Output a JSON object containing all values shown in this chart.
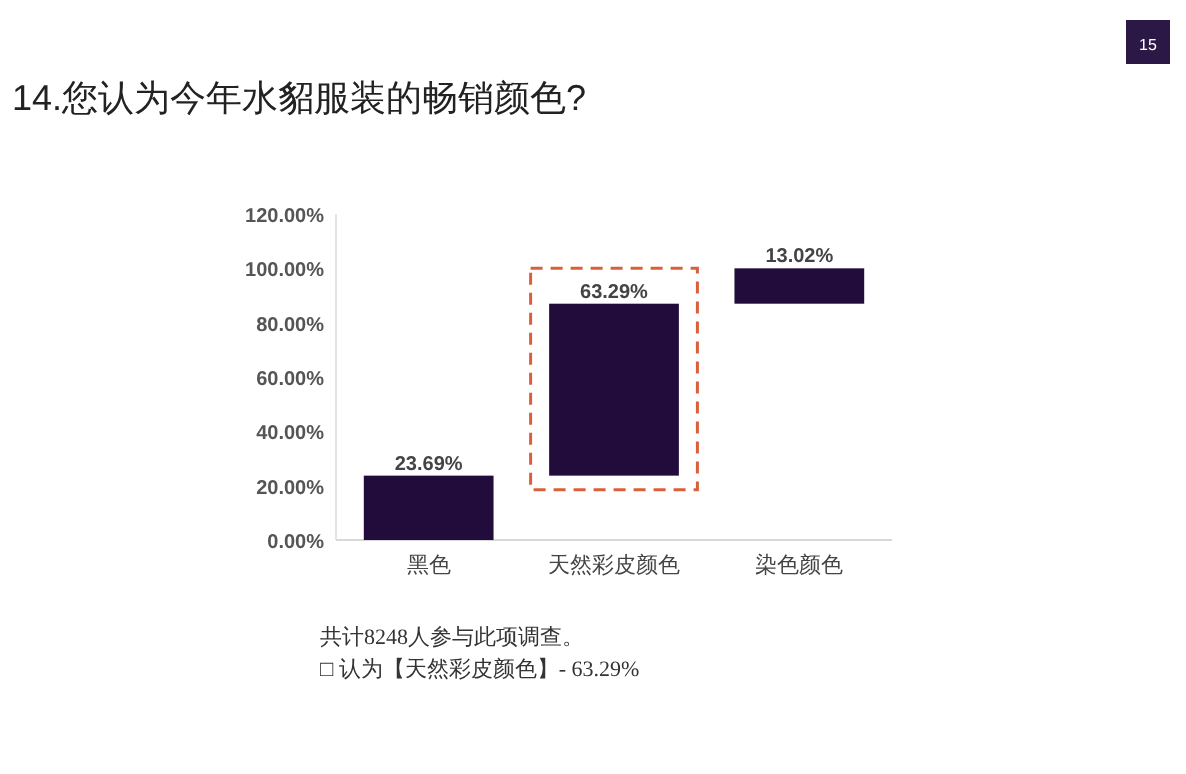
{
  "chart_data": {
    "type": "bar",
    "title": "14.您认为今年水貂服装的畅销颜色?",
    "categories": [
      "黑色",
      "天然彩皮颜色",
      "染色颜色"
    ],
    "values": [
      23.69,
      63.29,
      13.02
    ],
    "base": [
      0,
      23.69,
      86.98
    ],
    "color": "#220c3b",
    "value_labels": [
      "23.69%",
      "63.29%",
      "13.02%"
    ],
    "ylim": [
      0,
      120
    ],
    "yticks": [
      {
        "value": 0,
        "label": "0.00%"
      },
      {
        "value": 20,
        "label": "20.00%"
      },
      {
        "value": 40,
        "label": "40.00%"
      },
      {
        "value": 60,
        "label": "60.00%"
      },
      {
        "value": 80,
        "label": "80.00%"
      },
      {
        "value": 100,
        "label": "100.00%"
      },
      {
        "value": 120,
        "label": "120.00%"
      }
    ],
    "grid": false,
    "annotations": [
      "共计8248人参与此项调查。",
      "□ 认为【天然彩皮颜色】- 63.29%",
      "15"
    ]
  }
}
